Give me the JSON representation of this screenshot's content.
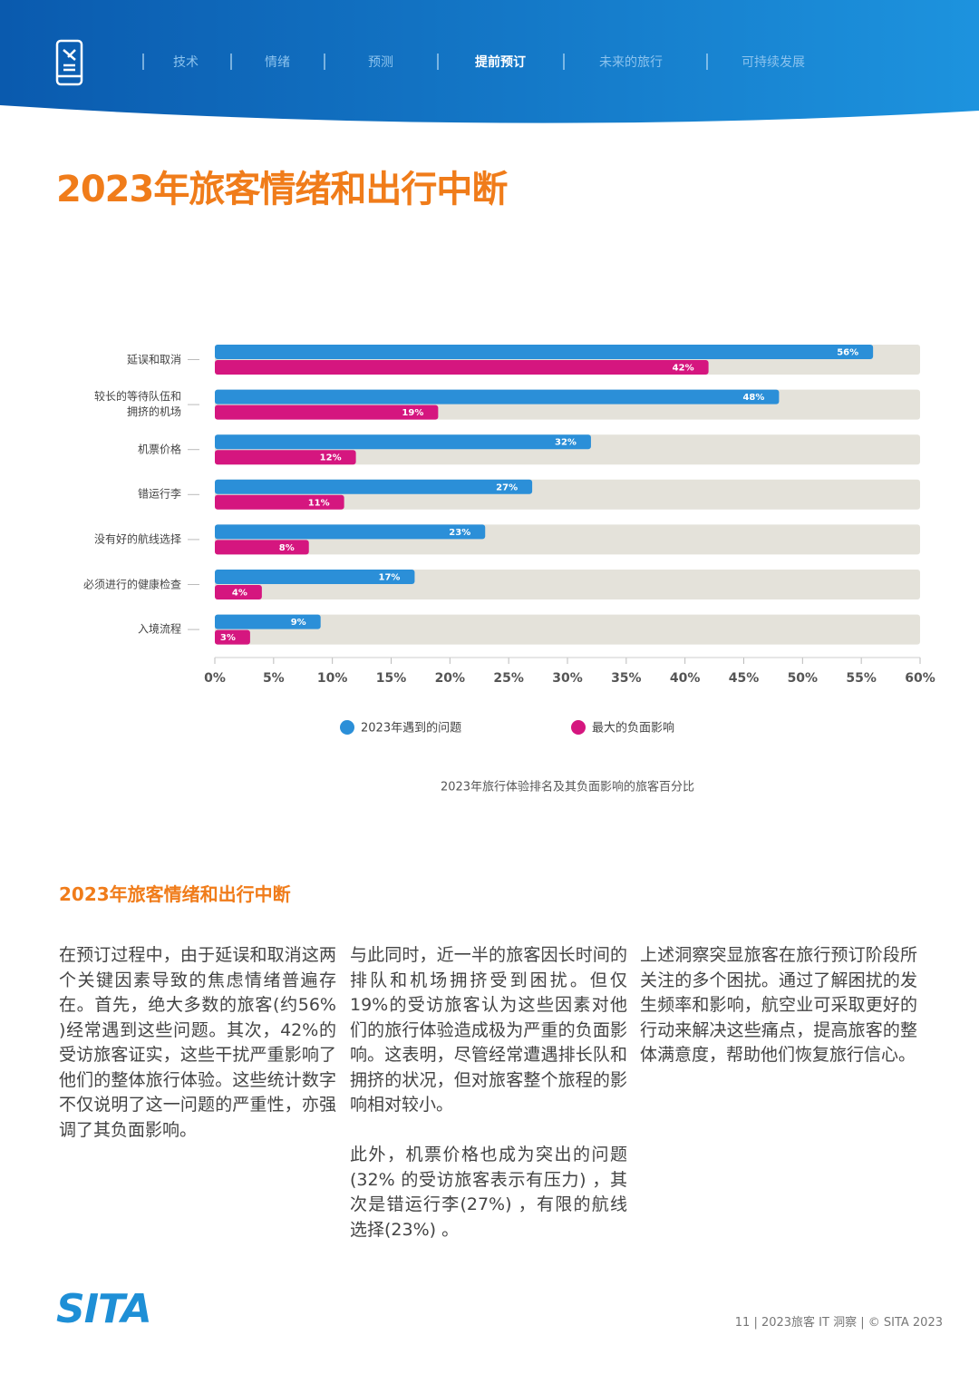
{
  "header": {
    "nav": [
      "技术",
      "情绪",
      "预测",
      "提前预订",
      "未来的旅行",
      "可持续发展"
    ]
  },
  "title": "2023年旅客情绪和出行中断",
  "chart_data": {
    "type": "bar",
    "orientation": "horizontal",
    "categories": [
      "延误和取消",
      "较长的等待队伍和\n拥挤的机场",
      "机票价格",
      "错运行李",
      "没有好的航线选择",
      "必须进行的健康检查",
      "入境流程"
    ],
    "series": [
      {
        "name": "2023年遇到的问题",
        "color": "#2b8fd8",
        "values": [
          56,
          48,
          32,
          27,
          23,
          17,
          9
        ],
        "value_labels": [
          "56%",
          "48%",
          "32%",
          "27%",
          "23%",
          "17%",
          "9%"
        ]
      },
      {
        "name": "最大的负面影响",
        "color": "#d5167f",
        "values": [
          42,
          19,
          12,
          11,
          8,
          4,
          3
        ],
        "value_labels": [
          "42%",
          "19%",
          "12%",
          "11%",
          "8%",
          "4%",
          "3%"
        ]
      }
    ],
    "xlim": [
      0,
      60
    ],
    "xticks": [
      {
        "value": 0,
        "label": "0%"
      },
      {
        "value": 5,
        "label": "5%"
      },
      {
        "value": 10,
        "label": "10%"
      },
      {
        "value": 15,
        "label": "15%"
      },
      {
        "value": 20,
        "label": "20%"
      },
      {
        "value": 25,
        "label": "25%"
      },
      {
        "value": 30,
        "label": "30%"
      },
      {
        "value": 35,
        "label": "35%"
      },
      {
        "value": 40,
        "label": "40%"
      },
      {
        "value": 45,
        "label": "45%"
      },
      {
        "value": 50,
        "label": "50%"
      },
      {
        "value": 55,
        "label": "55%"
      },
      {
        "value": 60,
        "label": "60%"
      }
    ],
    "caption": "2023年旅行体验排名及其负面影响的旅客百分比"
  },
  "section": {
    "title": "2023年旅客情绪和出行中断",
    "columns": [
      [
        "在预订过程中，由于延误和取消这两个关键因素导致的焦虑情绪普遍存在。首先，绝大多数的旅客(约56% )经常遇到这些问题。其次，42%的受访旅客证实，这些干扰严重影响了他们的整体旅行体验。这些统计数字不仅说明了这一问题的严重性，亦强调了其负面影响。"
      ],
      [
        "与此同时，近一半的旅客因长时间的排队和机场拥挤受到困扰。但仅19%的受访旅客认为这些因素对他们的旅行体验造成极为严重的负面影响。这表明，尽管经常遭遇排长队和拥挤的状况，但对旅客整个旅程的影响相对较小。",
        "此外，机票价格也成为突出的问题(32% 的受访旅客表示有压力) ，其次是错运行李(27%) ，有限的航线选择(23%) 。"
      ],
      [
        "上述洞察突显旅客在旅行预订阶段所关注的多个困扰。通过了解困扰的发生频率和影响，航空业可采取更好的行动来解决这些痛点，提高旅客的整体满意度，帮助他们恢复旅行信心。"
      ]
    ]
  },
  "footer": {
    "logo": "SITA",
    "text": "11 | 2023旅客 IT 洞察 | © SITA 2023"
  }
}
